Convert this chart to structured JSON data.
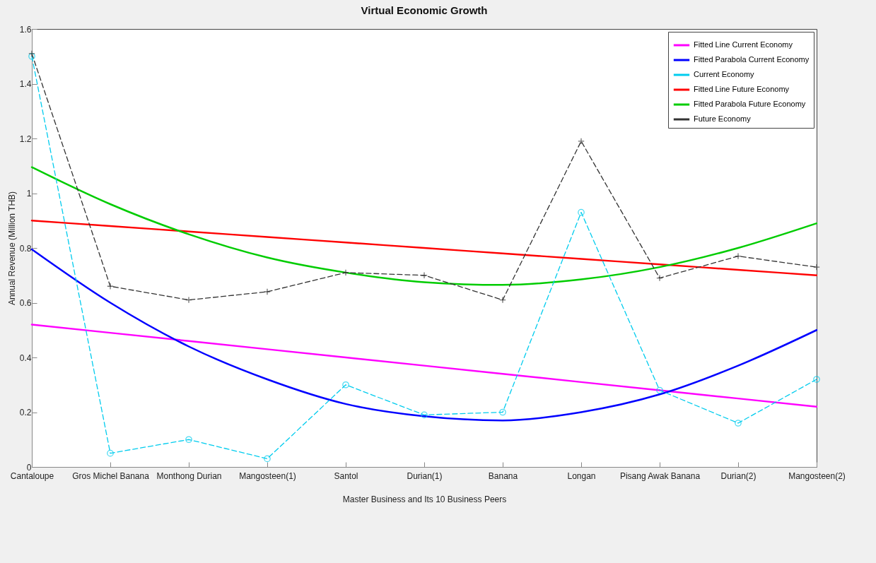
{
  "chart_data": {
    "type": "line",
    "title": "Virtual Economic Growth",
    "xlabel": "Master Business and Its 10 Business Peers",
    "ylabel": "Annual Revenue (Million THB)",
    "categories": [
      "Cantaloupe",
      "Gros Michel Banana",
      "Monthong Durian",
      "Mangosteen(1)",
      "Santol",
      "Durian(1)",
      "Banana",
      "Longan",
      "Pisang Awak Banana",
      "Durian(2)",
      "Mangosteen(2)"
    ],
    "series": [
      {
        "name": "Fitted Line Current Economy",
        "color": "#ff00ff",
        "line_style": "solid",
        "marker": "none",
        "values": [
          0.52,
          0.49,
          0.46,
          0.43,
          0.4,
          0.37,
          0.34,
          0.31,
          0.28,
          0.25,
          0.22
        ]
      },
      {
        "name": "Fitted Parabola Current Economy",
        "color": "#0000ff",
        "line_style": "solid",
        "marker": "none",
        "values": [
          0.795,
          0.6,
          0.44,
          0.32,
          0.23,
          0.185,
          0.17,
          0.2,
          0.265,
          0.37,
          0.5
        ]
      },
      {
        "name": "Current Economy",
        "color": "#00ccee",
        "line_style": "dashed",
        "marker": "circle",
        "values": [
          1.5,
          0.05,
          0.1,
          0.03,
          0.3,
          0.19,
          0.2,
          0.93,
          0.28,
          0.16,
          0.32
        ]
      },
      {
        "name": "Fitted Line Future Economy",
        "color": "#ff0000",
        "line_style": "solid",
        "marker": "none",
        "values": [
          0.9,
          0.88,
          0.86,
          0.84,
          0.82,
          0.8,
          0.78,
          0.76,
          0.74,
          0.72,
          0.7
        ]
      },
      {
        "name": "Fitted Parabola Future Economy",
        "color": "#00cc00",
        "line_style": "solid",
        "marker": "none",
        "values": [
          1.095,
          0.96,
          0.85,
          0.765,
          0.71,
          0.675,
          0.665,
          0.685,
          0.73,
          0.8,
          0.89
        ]
      },
      {
        "name": "Future Economy",
        "color": "#333333",
        "line_style": "dashed",
        "marker": "cross",
        "values": [
          1.51,
          0.66,
          0.61,
          0.64,
          0.71,
          0.7,
          0.61,
          1.19,
          0.69,
          0.77,
          0.73
        ]
      }
    ],
    "ylim": [
      0,
      1.6
    ],
    "yticks": [
      0,
      0.2,
      0.4,
      0.6,
      0.8,
      1,
      1.2,
      1.4,
      1.6
    ],
    "grid": false,
    "legend": "top right"
  }
}
